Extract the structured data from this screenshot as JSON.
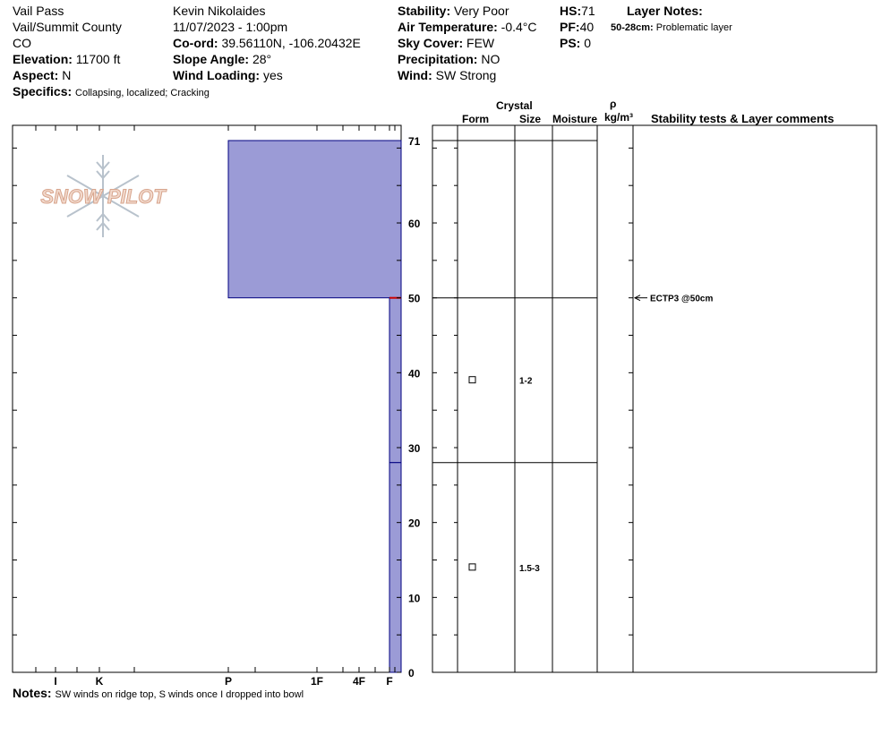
{
  "header": {
    "location": "Vail Pass",
    "region": "Vail/Summit County",
    "state": "CO",
    "elevation_label": "Elevation:",
    "elevation_value": "11700 ft",
    "aspect_label": "Aspect:",
    "aspect_value": "N",
    "observer": "Kevin Nikolaides",
    "datetime": "11/07/2023 - 1:00pm",
    "coord_label": "Co-ord:",
    "coord_value": "39.56110N, -106.20432E",
    "slope_label": "Slope Angle:",
    "slope_value": "28°",
    "wind_loading_label": "Wind Loading:",
    "wind_loading_value": "yes",
    "stability_label": "Stability:",
    "stability_value": "Very Poor",
    "air_temp_label": "Air Temperature:",
    "air_temp_value": "-0.4°C",
    "sky_label": "Sky Cover:",
    "sky_value": "FEW",
    "precip_label": "Precipitation:",
    "precip_value": "NO",
    "wind_label": "Wind:",
    "wind_value": "SW  Strong",
    "hs_label": "HS:",
    "hs_value": "71",
    "pf_label": "PF:",
    "pf_value": "40",
    "ps_label": "PS:",
    "ps_value": "0",
    "layer_notes_label": "Layer Notes:",
    "layer_note_range": "50-28cm:",
    "layer_note_text": "Problematic layer",
    "specifics_label": "Specifics:",
    "specifics_value": "Collapsing, localized;  Cracking"
  },
  "column_headers": {
    "crystal": "Crystal",
    "form": "Form",
    "size": "Size",
    "moisture": "Moisture",
    "rho": "ρ",
    "density_unit": "kg/m³",
    "comments": "Stability tests & Layer comments"
  },
  "logo_text": "SNOW PILOT",
  "notes_label": "Notes:",
  "notes_value": "SW winds on ridge top, S winds once I dropped into bowl",
  "hardness_ticks": [
    "I",
    "K",
    "P",
    "1F",
    "4F",
    "F"
  ],
  "height_ticks": [
    "0",
    "10",
    "20",
    "30",
    "40",
    "50",
    "60",
    "71"
  ],
  "chart_data": {
    "type": "snow_profile",
    "total_height_cm": 71,
    "hardness_scale": [
      "F",
      "4F",
      "1F",
      "P",
      "K",
      "I"
    ],
    "layers": [
      {
        "top_cm": 71,
        "bottom_cm": 50,
        "hardness": "P",
        "form": "",
        "size": ""
      },
      {
        "top_cm": 50,
        "bottom_cm": 28,
        "hardness": "F",
        "form": "□",
        "size": "1-2"
      },
      {
        "top_cm": 28,
        "bottom_cm": 0,
        "hardness": "F",
        "form": "□",
        "size": "1.5-3"
      }
    ],
    "layer_colors": {
      "fill": "#9b9bd6",
      "stroke": "#000080"
    },
    "stability_tests": [
      {
        "depth_cm": 50,
        "label": "ECTP3 @50cm"
      }
    ]
  }
}
